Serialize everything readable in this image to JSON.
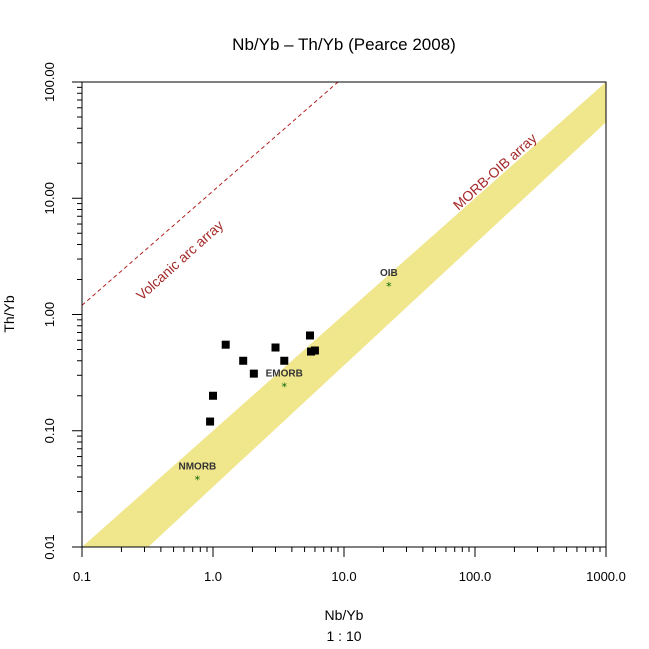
{
  "chart_data": {
    "type": "scatter",
    "title": "Nb/Yb – Th/Yb (Pearce 2008)",
    "xlabel": "Nb/Yb",
    "ylabel": "Th/Yb",
    "xscale": "log",
    "yscale": "log",
    "xlim": [
      0.1,
      1000
    ],
    "ylim": [
      0.01,
      100
    ],
    "scale_note": "1 : 10",
    "x_ticks": [
      "0.1",
      "1.0",
      "10.0",
      "100.0",
      "1000.0"
    ],
    "y_ticks": [
      "0.01",
      "0.10",
      "1.00",
      "10.00",
      "100.00"
    ],
    "grid": false,
    "samples": [
      {
        "x": 0.95,
        "y": 0.12
      },
      {
        "x": 1.0,
        "y": 0.2
      },
      {
        "x": 1.25,
        "y": 0.55
      },
      {
        "x": 1.7,
        "y": 0.4
      },
      {
        "x": 2.05,
        "y": 0.31
      },
      {
        "x": 3.0,
        "y": 0.52
      },
      {
        "x": 3.5,
        "y": 0.4
      },
      {
        "x": 5.5,
        "y": 0.66
      },
      {
        "x": 5.6,
        "y": 0.48
      },
      {
        "x": 6.0,
        "y": 0.49
      }
    ],
    "reference_points": [
      {
        "label": "NMORB",
        "x": 0.76,
        "y": 0.038
      },
      {
        "label": "EMORB",
        "x": 3.5,
        "y": 0.24
      },
      {
        "label": "OIB",
        "x": 22,
        "y": 1.75
      }
    ],
    "morb_oib_array": {
      "label": "MORB-OIB array",
      "upper": [
        [
          0.1,
          0.01
        ],
        [
          1000,
          100
        ]
      ],
      "lower": [
        [
          0.32,
          0.01
        ],
        [
          1000,
          45
        ]
      ],
      "color": "#f0e68c"
    },
    "volcanic_arc_array": {
      "label": "Volcanic arc array",
      "line": [
        [
          0.1,
          1.2
        ],
        [
          9.0,
          100
        ]
      ],
      "color": "#b22222"
    },
    "colors": {
      "sample": "#000000",
      "reference": "#006400"
    }
  }
}
